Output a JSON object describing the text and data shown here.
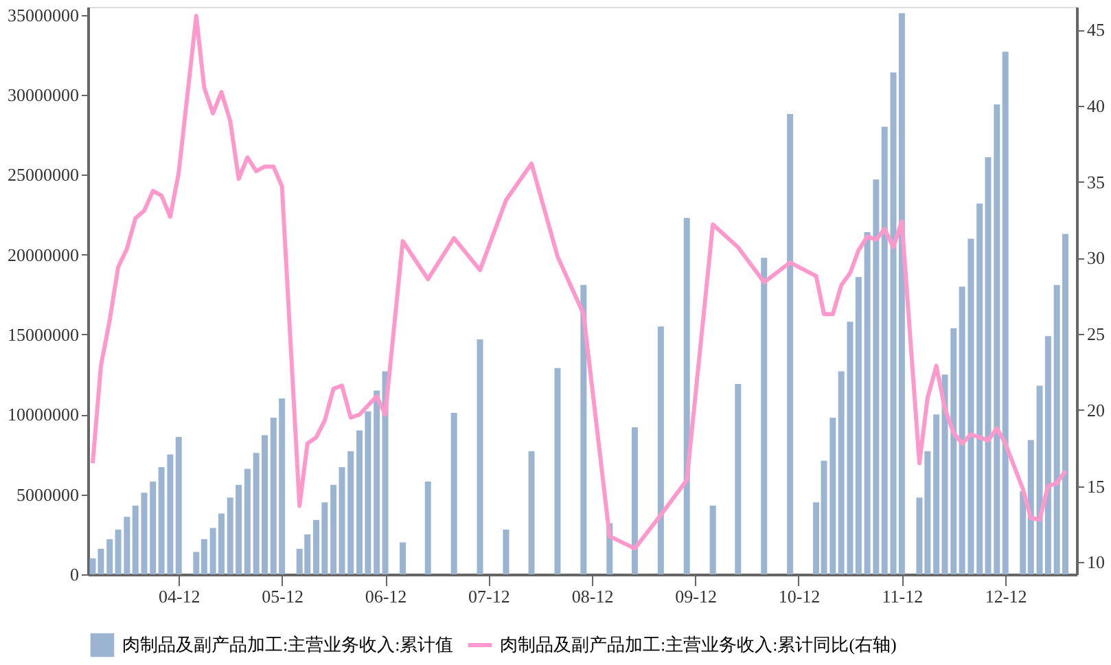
{
  "chart_data": {
    "type": "bar",
    "x": [
      "2004-02",
      "2004-03",
      "2004-04",
      "2004-05",
      "2004-06",
      "2004-07",
      "2004-08",
      "2004-09",
      "2004-10",
      "2004-11",
      "2004-12",
      "2005-01",
      "2005-02",
      "2005-03",
      "2005-04",
      "2005-05",
      "2005-06",
      "2005-07",
      "2005-08",
      "2005-09",
      "2005-10",
      "2005-11",
      "2005-12",
      "2006-01",
      "2006-02",
      "2006-03",
      "2006-04",
      "2006-05",
      "2006-06",
      "2006-07",
      "2006-08",
      "2006-09",
      "2006-10",
      "2006-11",
      "2006-12",
      "2007-01",
      "2007-02",
      "2007-03",
      "2007-04",
      "2007-05",
      "2007-06",
      "2007-07",
      "2007-08",
      "2007-09",
      "2007-10",
      "2007-11",
      "2007-12",
      "2008-01",
      "2008-02",
      "2008-03",
      "2008-04",
      "2008-05",
      "2008-06",
      "2008-07",
      "2008-08",
      "2008-09",
      "2008-10",
      "2008-11",
      "2008-12",
      "2009-01",
      "2009-02",
      "2009-03",
      "2009-04",
      "2009-05",
      "2009-06",
      "2009-07",
      "2009-08",
      "2009-09",
      "2009-10",
      "2009-11",
      "2009-12",
      "2010-01",
      "2010-02",
      "2010-03",
      "2010-04",
      "2010-05",
      "2010-06",
      "2010-07",
      "2010-08",
      "2010-09",
      "2010-10",
      "2010-11",
      "2010-12",
      "2011-01",
      "2011-02",
      "2011-03",
      "2011-04",
      "2011-05",
      "2011-06",
      "2011-07",
      "2011-08",
      "2011-09",
      "2011-10",
      "2011-11",
      "2011-12",
      "2012-01",
      "2012-02",
      "2012-03",
      "2012-04",
      "2012-05",
      "2012-06",
      "2012-07",
      "2012-08",
      "2012-09",
      "2012-10",
      "2012-11",
      "2012-12",
      "2013-01",
      "2013-02",
      "2013-03",
      "2013-04",
      "2013-05",
      "2013-06",
      "2013-07"
    ],
    "series": [
      {
        "name": "肉制品及副产品加工:主营业务收入:累计值",
        "color": "#9bb4d2",
        "values": [
          1000000,
          1600000,
          2200000,
          2800000,
          3600000,
          4300000,
          5100000,
          5800000,
          6700000,
          7500000,
          8600000,
          null,
          1400000,
          2200000,
          2900000,
          3800000,
          4800000,
          5600000,
          6600000,
          7600000,
          8700000,
          9800000,
          11000000,
          null,
          1600000,
          2500000,
          3400000,
          4500000,
          5600000,
          6700000,
          7700000,
          9000000,
          10200000,
          11500000,
          12700000,
          null,
          2000000,
          null,
          null,
          5800000,
          null,
          null,
          10100000,
          null,
          null,
          14700000,
          null,
          null,
          2800000,
          null,
          null,
          7700000,
          null,
          null,
          12900000,
          null,
          null,
          18100000,
          null,
          null,
          3200000,
          null,
          null,
          9200000,
          null,
          null,
          15500000,
          null,
          null,
          22300000,
          null,
          null,
          4300000,
          null,
          null,
          11900000,
          null,
          null,
          19800000,
          null,
          null,
          28800000,
          null,
          null,
          4500000,
          7100000,
          9800000,
          12700000,
          15800000,
          18600000,
          21400000,
          24700000,
          28000000,
          31400000,
          35100000,
          null,
          4800000,
          7700000,
          10000000,
          12500000,
          15400000,
          18000000,
          21000000,
          23200000,
          26100000,
          29400000,
          32700000,
          null,
          5200000,
          8400000,
          11800000,
          14900000,
          18100000,
          21300000
        ]
      },
      {
        "name": "肉制品及副产品加工:主营业务收入:累计同比(右轴)",
        "type": "line",
        "axis": "y2",
        "color": "#ff99cc",
        "values": [
          16.5,
          22.9,
          25.9,
          29.4,
          30.6,
          32.6,
          33.1,
          34.4,
          34.1,
          32.7,
          35.6,
          null,
          45.9,
          41.2,
          39.5,
          40.9,
          39.0,
          35.2,
          36.6,
          35.7,
          36.0,
          36.0,
          34.7,
          null,
          13.7,
          17.8,
          18.2,
          19.3,
          21.4,
          21.6,
          19.5,
          19.7,
          20.3,
          20.9,
          19.7,
          null,
          31.1,
          null,
          null,
          28.6,
          null,
          null,
          31.3,
          null,
          null,
          29.2,
          null,
          null,
          33.8,
          null,
          null,
          36.2,
          null,
          null,
          30.1,
          null,
          null,
          26.3,
          null,
          null,
          11.7,
          null,
          null,
          10.9,
          null,
          null,
          13.1,
          null,
          null,
          15.4,
          null,
          null,
          32.2,
          null,
          null,
          30.7,
          null,
          null,
          28.4,
          null,
          null,
          29.7,
          null,
          null,
          28.8,
          26.3,
          26.3,
          28.2,
          29.0,
          30.5,
          31.4,
          31.2,
          31.9,
          30.7,
          32.4,
          null,
          16.5,
          20.8,
          22.9,
          20.1,
          18.5,
          17.8,
          18.4,
          18.2,
          18.0,
          18.8,
          17.8,
          null,
          14.8,
          12.9,
          12.8,
          15.0,
          15.2,
          16.0
        ]
      }
    ],
    "xlim": [
      "2004-01-15",
      "2013-08-10"
    ],
    "xticks": [
      {
        "value": "2004-12",
        "label": "04-12"
      },
      {
        "value": "2005-12",
        "label": "05-12"
      },
      {
        "value": "2006-12",
        "label": "06-12"
      },
      {
        "value": "2007-12",
        "label": "07-12"
      },
      {
        "value": "2008-12",
        "label": "08-12"
      },
      {
        "value": "2009-12",
        "label": "09-12"
      },
      {
        "value": "2010-12",
        "label": "10-12"
      },
      {
        "value": "2011-12",
        "label": "11-12"
      },
      {
        "value": "2012-12",
        "label": "12-12"
      }
    ],
    "ylim": [
      0,
      35500000
    ],
    "yticks": [
      0,
      5000000,
      10000000,
      15000000,
      20000000,
      25000000,
      30000000,
      35000000
    ],
    "y2lim": [
      9.2,
      46.5
    ],
    "y2ticks": [
      10,
      15,
      20,
      25,
      30,
      35,
      40,
      45
    ],
    "grid": false,
    "legend": "bottom"
  }
}
